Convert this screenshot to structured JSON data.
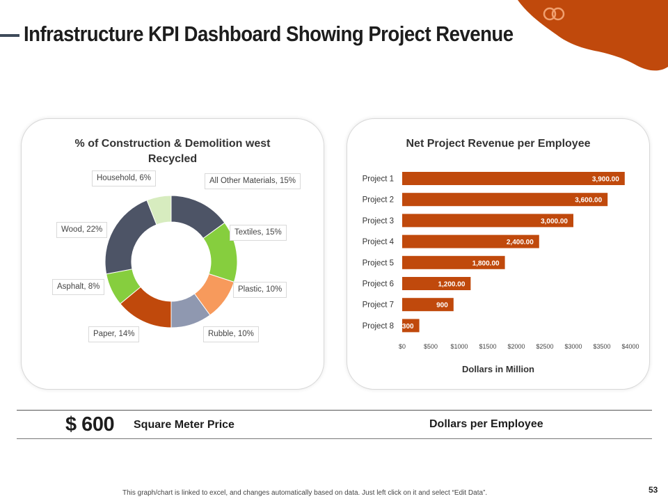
{
  "header": {
    "title": "Infrastructure KPI Dashboard Showing Project Revenue"
  },
  "colors": {
    "accent": "#c0490c",
    "title_bar": "#3e4a5a",
    "slices": [
      "#4d5466",
      "#86ce3e",
      "#f79a5c",
      "#8f98b0",
      "#c0490c",
      "#86ce3e",
      "#4d5466",
      "#d7ecbf"
    ]
  },
  "chart_data": [
    {
      "type": "pie",
      "donut": true,
      "title": "% of Construction & Demolition west Recycled",
      "categories": [
        "All Other Materials",
        "Textiles",
        "Plastic",
        "Rubble",
        "Paper",
        "Asphalt",
        "Wood",
        "Household"
      ],
      "values": [
        15,
        15,
        10,
        10,
        14,
        8,
        22,
        6
      ],
      "data_labels": [
        "All Other Materials, 15%",
        "Textiles, 15%",
        "Plastic, 10%",
        "Rubble, 10%",
        "Paper, 14%",
        "Asphalt, 8%",
        "Wood, 22%",
        "Household, 6%"
      ],
      "legend": "none"
    },
    {
      "type": "bar",
      "orientation": "horizontal",
      "title": "Net Project Revenue per Employee",
      "categories": [
        "Project 1",
        "Project 2",
        "Project 3",
        "Project 4",
        "Project 5",
        "Project 6",
        "Project 7",
        "Project 8"
      ],
      "values": [
        3900,
        3600,
        3000,
        2400,
        1800,
        1200,
        900,
        300
      ],
      "data_labels": [
        "3,900.00",
        "3,600.00",
        "3,000.00",
        "2,400.00",
        "1,800.00",
        "1,200.00",
        "900",
        "300"
      ],
      "xlim": [
        0,
        4000
      ],
      "xticks": [
        "$0",
        "$500",
        "$1000",
        "$1500",
        "$2000",
        "$2500",
        "$3000",
        "$3500",
        "$4000"
      ],
      "xlabel": "Dollars in Million",
      "ylabel": "",
      "grid": false
    }
  ],
  "summary": {
    "price_value": "$ 600",
    "price_label": "Square Meter Price",
    "dpe_label": "Dollars per Employee"
  },
  "footer": {
    "note": "This graph/chart is linked to excel, and changes automatically based on data. Just left click on it and select “Edit Data”.",
    "page_number": "53"
  }
}
